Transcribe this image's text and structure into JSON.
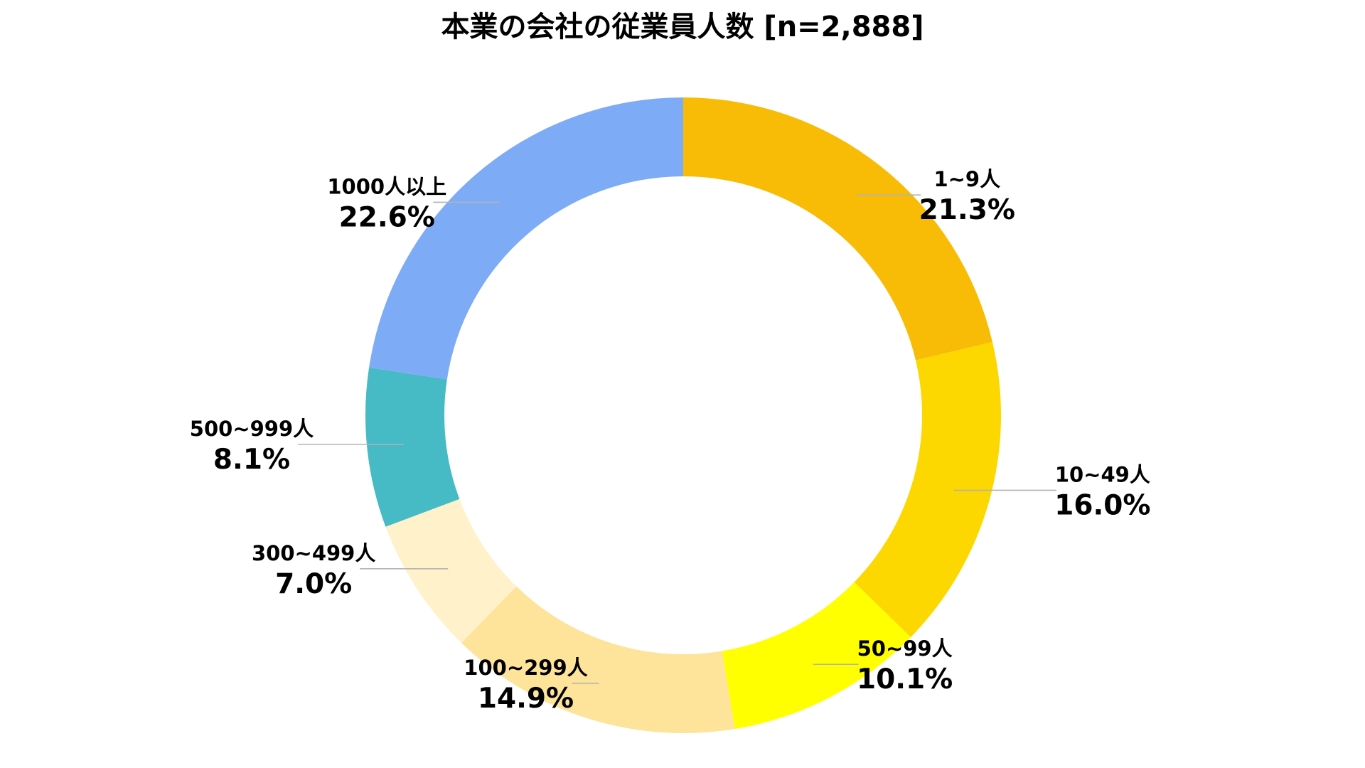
{
  "chart_data": {
    "type": "pie",
    "title": "本業の会社の従業員人数  [n=2,888]",
    "donut": true,
    "legend": "none",
    "slices": [
      {
        "label": "1~9人",
        "value": 21.3,
        "value_label": "21.3%",
        "color": "#f9bc06"
      },
      {
        "label": "10~49人",
        "value": 16.0,
        "value_label": "16.0%",
        "color": "#fdd700"
      },
      {
        "label": "50~99人",
        "value": 10.1,
        "value_label": "10.1%",
        "color": "#ffff00"
      },
      {
        "label": "100~299人",
        "value": 14.9,
        "value_label": "14.9%",
        "color": "#fee49a"
      },
      {
        "label": "300~499人",
        "value": 7.0,
        "value_label": "7.0%",
        "color": "#fff1ca"
      },
      {
        "label": "500~999人",
        "value": 8.1,
        "value_label": "8.1%",
        "color": "#46bac5"
      },
      {
        "label": "1000人以上",
        "value": 22.6,
        "value_label": "22.6%",
        "color": "#7dabf6"
      }
    ]
  }
}
